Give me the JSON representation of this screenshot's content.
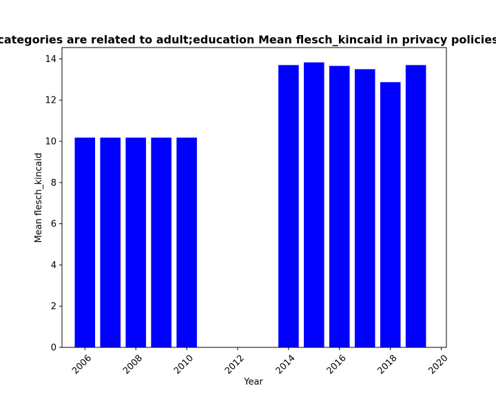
{
  "chart_data": {
    "type": "bar",
    "title": "categories are related to adult;education Mean flesch_kincaid in privacy policies",
    "xlabel": "Year",
    "ylabel": "Mean flesch_kincaid",
    "x": [
      2006,
      2007,
      2008,
      2009,
      2010,
      2014,
      2015,
      2016,
      2017,
      2018,
      2019
    ],
    "values": [
      10.18,
      10.18,
      10.18,
      10.18,
      10.18,
      13.7,
      13.83,
      13.66,
      13.5,
      12.87,
      13.7
    ],
    "xlim": [
      2005.1,
      2020.2
    ],
    "ylim": [
      0,
      14.55
    ],
    "xticks": [
      2006,
      2008,
      2010,
      2012,
      2014,
      2016,
      2018,
      2020
    ],
    "xtick_labels": [
      "2006",
      "2008",
      "2010",
      "2012",
      "2014",
      "2016",
      "2018",
      "2020"
    ],
    "yticks": [
      0,
      2,
      4,
      6,
      8,
      10,
      12,
      14
    ],
    "ytick_labels": [
      "0",
      "2",
      "4",
      "6",
      "8",
      "10",
      "12",
      "14"
    ],
    "bar_color": "#0000ff",
    "grid": false,
    "legend": "none"
  }
}
